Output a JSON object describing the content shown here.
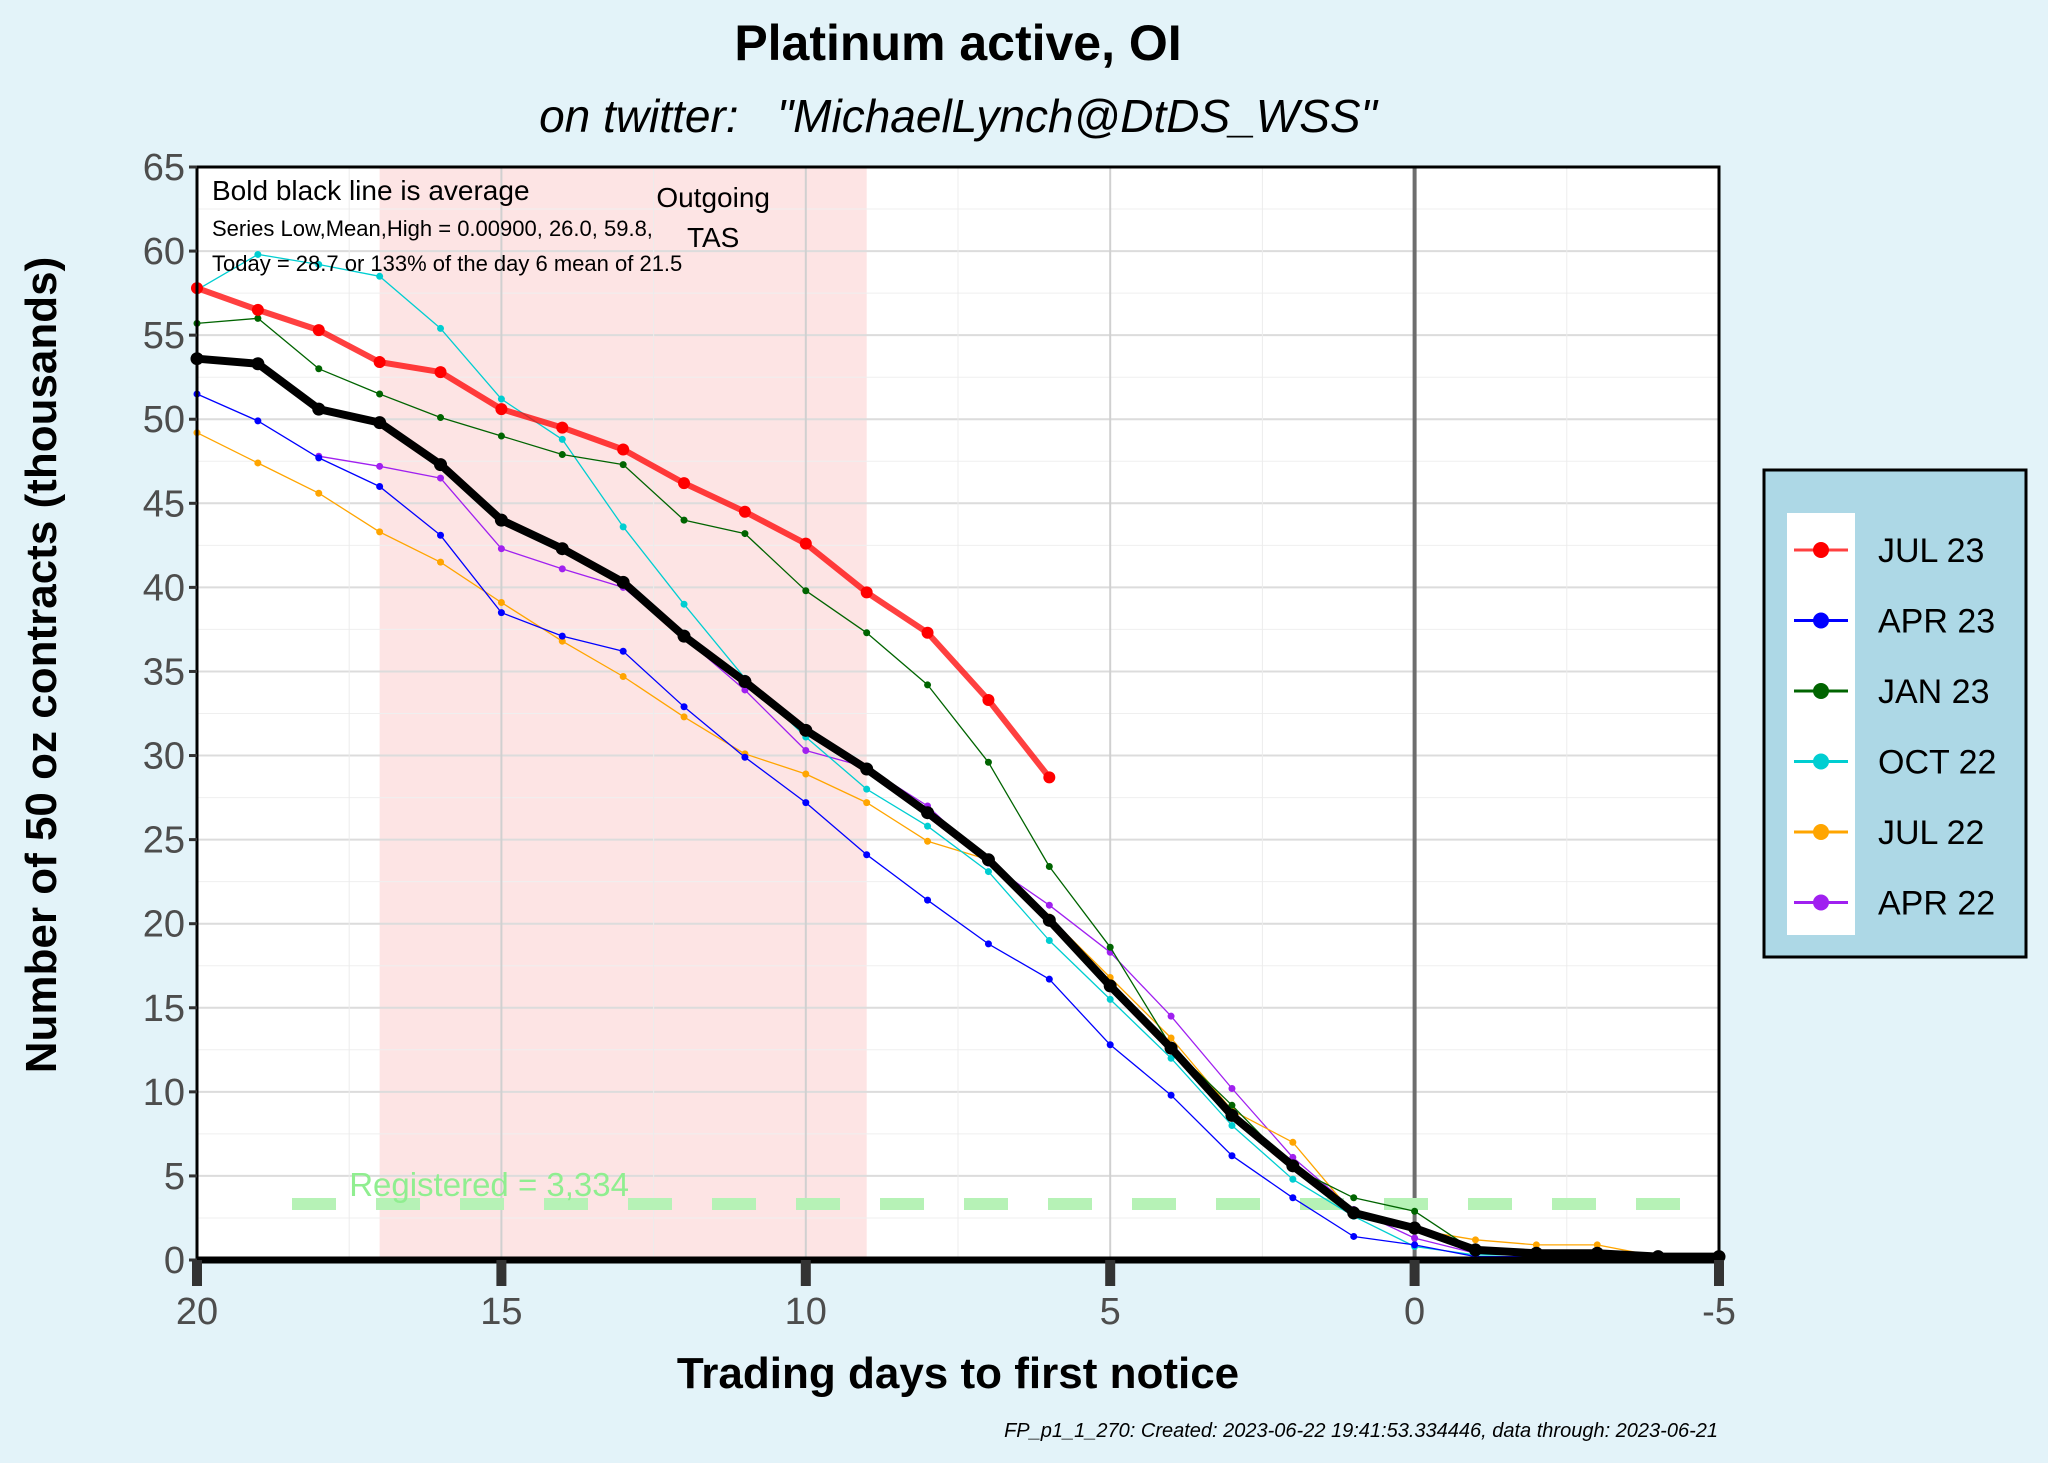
{
  "chart_data": {
    "type": "line",
    "title": "Platinum active, OI",
    "subtitle": "on twitter:   \"MichaelLynch@DtDS_WSS\"",
    "xlabel": "Trading days to first notice",
    "ylabel": "Number of 50 oz contracts (thousands)",
    "xlim": [
      20,
      -5
    ],
    "ylim": [
      0,
      65
    ],
    "xticks": [
      20,
      15,
      10,
      5,
      0,
      -5
    ],
    "xtick_labels": [
      "20",
      "15",
      "10",
      "5",
      "0",
      "-5"
    ],
    "yticks": [
      0,
      5,
      10,
      15,
      20,
      25,
      30,
      35,
      40,
      45,
      50,
      55,
      60,
      65
    ],
    "ytick_labels": [
      "0",
      "5",
      "10",
      "15",
      "20",
      "25",
      "30",
      "35",
      "40",
      "45",
      "50",
      "55",
      "60",
      "65"
    ],
    "grid": true,
    "legend_position": "right",
    "annotations": {
      "notes": [
        "Bold black line is average",
        "Series Low,Mean,High = 0.00900, 26.0, 59.8,",
        "Today = 28.7 or 133% of the day 6 mean of 21.5"
      ],
      "tas_label": [
        "Outgoing",
        "TAS"
      ],
      "tas_region": [
        17,
        9
      ],
      "registered_label": "Registered = 3,334",
      "registered_value": 3.334,
      "vertical_line_at": 0,
      "footer": "FP_p1_1_270: Created: 2023-06-22 19:41:53.334446, data through: 2023-06-21"
    },
    "colors": {
      "background": "#e3f3f9",
      "panel": "#ffffff",
      "tas_shade": "#fde4e4",
      "registered": "#b6f2b6",
      "legend_bg": "#add8e6",
      "average": "#000000"
    },
    "x": [
      20,
      19,
      18,
      17,
      16,
      15,
      14,
      13,
      12,
      11,
      10,
      9,
      8,
      7,
      6,
      5,
      4,
      3,
      2,
      1,
      0,
      -1,
      -2,
      -3,
      -4,
      -5
    ],
    "series": [
      {
        "name": "APR 22",
        "color": "#a020f0",
        "values": [
          null,
          null,
          47.8,
          47.2,
          46.5,
          42.3,
          41.1,
          40.0,
          37.0,
          33.9,
          30.3,
          29.3,
          27.0,
          23.6,
          21.1,
          18.3,
          14.5,
          10.2,
          6.1,
          3.0,
          1.3,
          0.4,
          0.3,
          0.3,
          0.2,
          0.2
        ]
      },
      {
        "name": "JUL 22",
        "color": "#ffa500",
        "values": [
          49.2,
          47.4,
          45.6,
          43.3,
          41.5,
          39.1,
          36.8,
          34.7,
          32.3,
          30.1,
          28.9,
          27.2,
          24.9,
          23.8,
          20.4,
          16.8,
          13.2,
          8.9,
          7.0,
          2.7,
          1.8,
          1.2,
          0.9,
          0.9,
          0.2,
          null
        ]
      },
      {
        "name": "OCT 22",
        "color": "#00ced1",
        "values": [
          57.7,
          59.8,
          59.2,
          58.5,
          55.4,
          51.2,
          48.8,
          43.6,
          39.0,
          34.6,
          31.1,
          28.0,
          25.8,
          23.1,
          19.0,
          15.5,
          12.0,
          8.0,
          4.8,
          2.6,
          0.8,
          0.3,
          0.3,
          0.3,
          0.2,
          null
        ]
      },
      {
        "name": "JAN 23",
        "color": "#006400",
        "values": [
          55.7,
          56.0,
          53.0,
          51.5,
          50.1,
          49.0,
          47.9,
          47.3,
          44.0,
          43.2,
          39.8,
          37.3,
          34.2,
          29.6,
          23.4,
          18.6,
          12.7,
          9.2,
          5.5,
          3.7,
          2.9,
          0.5,
          0.4,
          0.4,
          0.3,
          null
        ]
      },
      {
        "name": "APR 23",
        "color": "#0000ff",
        "values": [
          51.5,
          49.9,
          47.7,
          46.0,
          43.1,
          38.5,
          37.1,
          36.2,
          32.9,
          29.9,
          27.2,
          24.1,
          21.4,
          18.8,
          16.7,
          12.8,
          9.8,
          6.2,
          3.7,
          1.4,
          0.9,
          0.2,
          0.2,
          0.2,
          0.2,
          null
        ]
      },
      {
        "name": "JUL 23",
        "color": "#ff0000",
        "values": [
          57.8,
          56.5,
          55.3,
          53.4,
          52.8,
          50.6,
          49.5,
          48.2,
          46.2,
          44.5,
          42.6,
          39.7,
          37.3,
          33.3,
          28.7,
          null,
          null,
          null,
          null,
          null,
          null,
          null,
          null,
          null,
          null,
          null
        ]
      },
      {
        "name": "Average",
        "color": "#000000",
        "values": [
          53.6,
          53.3,
          50.6,
          49.8,
          47.3,
          44.0,
          42.3,
          40.3,
          37.1,
          34.4,
          31.5,
          29.2,
          26.6,
          23.8,
          20.2,
          16.3,
          12.6,
          8.6,
          5.6,
          2.8,
          1.9,
          0.6,
          0.4,
          0.4,
          0.2,
          0.2
        ]
      }
    ],
    "legend_order": [
      "JUL 23",
      "APR 23",
      "JAN 23",
      "OCT 22",
      "JUL 22",
      "APR 22"
    ]
  }
}
